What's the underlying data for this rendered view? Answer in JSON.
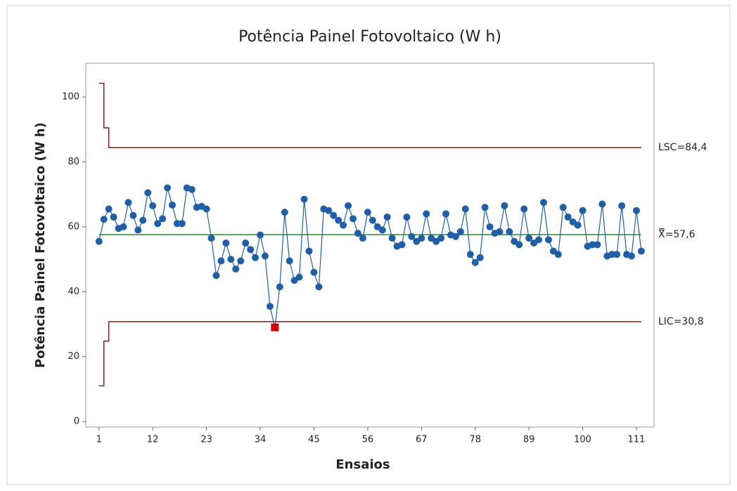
{
  "chart_data": {
    "type": "control",
    "title": "Potência Painel Fotovoltaico (W h)",
    "x_label": "Ensaios",
    "y_label": "Potência Painel Fotovoltaico (W h)",
    "x": [
      1,
      2,
      3,
      4,
      5,
      6,
      7,
      8,
      9,
      10,
      11,
      12,
      13,
      14,
      15,
      16,
      17,
      18,
      19,
      20,
      21,
      22,
      23,
      24,
      25,
      26,
      27,
      28,
      29,
      30,
      31,
      32,
      33,
      34,
      35,
      36,
      37,
      38,
      39,
      40,
      41,
      42,
      43,
      44,
      45,
      46,
      47,
      48,
      49,
      50,
      51,
      52,
      53,
      54,
      55,
      56,
      57,
      58,
      59,
      60,
      61,
      62,
      63,
      64,
      65,
      66,
      67,
      68,
      69,
      70,
      71,
      72,
      73,
      74,
      75,
      76,
      77,
      78,
      79,
      80,
      81,
      82,
      83,
      84,
      85,
      86,
      87,
      88,
      89,
      90,
      91,
      92,
      93,
      94,
      95,
      96,
      97,
      98,
      99,
      100,
      101,
      102,
      103,
      104,
      105,
      106,
      107,
      108,
      109,
      110,
      111,
      112
    ],
    "values": [
      55.5,
      62.3,
      65.5,
      63,
      59.5,
      60,
      67.5,
      63.5,
      59,
      62,
      70.5,
      66.5,
      61,
      62.5,
      72,
      66.7,
      61,
      61,
      72,
      71.5,
      66,
      66.3,
      65.5,
      56.5,
      45,
      49.5,
      55,
      50,
      47,
      49.5,
      55,
      53,
      50.5,
      57.5,
      51,
      35.5,
      29,
      41.5,
      64.5,
      49.5,
      43.5,
      44.5,
      68.5,
      52.5,
      46,
      41.5,
      65.5,
      65,
      63.5,
      62,
      60.5,
      66.5,
      62.5,
      58,
      56.5,
      64.5,
      62,
      60,
      59,
      63,
      56.5,
      54,
      54.5,
      63,
      57,
      55.5,
      56.5,
      64,
      56.5,
      55.5,
      56.5,
      64,
      57.5,
      57,
      58.5,
      65.5,
      51.5,
      49,
      50.5,
      66,
      60,
      58,
      58.5,
      66.5,
      58.5,
      55.5,
      54.5,
      65.5,
      56.5,
      55,
      56,
      67.5,
      56,
      52.5,
      51.5,
      66,
      63,
      61.5,
      60.5,
      65,
      54,
      54.5,
      54.5,
      67,
      51,
      51.5,
      51.5,
      66.5,
      51.5,
      51,
      65,
      52.5
    ],
    "color": "#1f5fa8",
    "out_of_control": [
      36
    ],
    "out_color": "#d40000",
    "ucl_start": [
      104.2,
      90.5
    ],
    "lcl_start": [
      11,
      24.8
    ],
    "ucl": 84.4,
    "ucl_label": "LSC=84,4",
    "center": 57.6,
    "center_label": "X̿=57,6",
    "lcl": 30.8,
    "lcl_label": "LIC=30,8",
    "limit_color": "#8b1a1a",
    "center_color": "#2e8b2e",
    "xlim": [
      -1.7,
      114.6
    ],
    "xticks": [
      1,
      12,
      23,
      34,
      45,
      56,
      67,
      78,
      89,
      100,
      111
    ],
    "ylim": [
      -1.7,
      110.4
    ],
    "yticks": [
      0,
      20,
      40,
      60,
      80,
      100
    ],
    "grid": false
  }
}
